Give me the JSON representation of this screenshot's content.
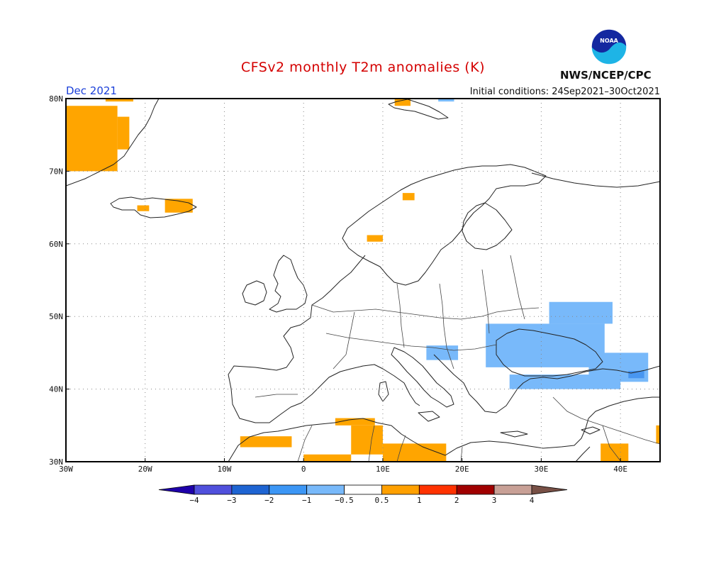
{
  "header": {
    "title": "CFSv2 monthly T2m anomalies (K)",
    "agency": "NWS/NCEP/CPC",
    "logo_text": "NOAA",
    "month": "Dec 2021",
    "initial_conditions": "Initial conditions: 24Sep2021–30Oct2021"
  },
  "map": {
    "lon_range": [
      -30,
      45
    ],
    "lat_range": [
      30,
      80
    ],
    "lon_ticks": [
      {
        "value": -30,
        "label": "30W"
      },
      {
        "value": -20,
        "label": "20W"
      },
      {
        "value": -10,
        "label": "10W"
      },
      {
        "value": 0,
        "label": "0"
      },
      {
        "value": 10,
        "label": "10E"
      },
      {
        "value": 20,
        "label": "20E"
      },
      {
        "value": 30,
        "label": "30E"
      },
      {
        "value": 40,
        "label": "40E"
      }
    ],
    "lat_ticks": [
      {
        "value": 30,
        "label": "30N"
      },
      {
        "value": 40,
        "label": "40N"
      },
      {
        "value": 50,
        "label": "50N"
      },
      {
        "value": 60,
        "label": "60N"
      },
      {
        "value": 70,
        "label": "70N"
      },
      {
        "value": 80,
        "label": "80N"
      }
    ],
    "warm_patches": [
      {
        "name": "greenland-warm",
        "lon": [
          -30,
          -23.5
        ],
        "lat": [
          70,
          79
        ],
        "color": "#ffa500"
      },
      {
        "name": "greenland-coast-warm",
        "lon": [
          -23.5,
          -22
        ],
        "lat": [
          73,
          77.5
        ],
        "color": "#ffa500"
      },
      {
        "name": "greenland-top-warm",
        "lon": [
          -25,
          -21.5
        ],
        "lat": [
          79.6,
          80
        ],
        "color": "#ffa500"
      },
      {
        "name": "iceland-warm-west",
        "lon": [
          -21,
          -19.5
        ],
        "lat": [
          64.5,
          65.3
        ],
        "color": "#ffa500"
      },
      {
        "name": "iceland-warm-east",
        "lon": [
          -17.5,
          -14
        ],
        "lat": [
          64.3,
          66.2
        ],
        "color": "#ffa500"
      },
      {
        "name": "norway-warm-north",
        "lon": [
          12.5,
          14
        ],
        "lat": [
          66,
          67
        ],
        "color": "#ffa500"
      },
      {
        "name": "norway-warm-south",
        "lon": [
          8,
          10
        ],
        "lat": [
          60.3,
          61.2
        ],
        "color": "#ffa500"
      },
      {
        "name": "svalbard-warm",
        "lon": [
          11.5,
          13.5
        ],
        "lat": [
          79,
          80
        ],
        "color": "#ffa500"
      },
      {
        "name": "morocco-warm",
        "lon": [
          -8,
          -1.5
        ],
        "lat": [
          32,
          33.5
        ],
        "color": "#ffa500"
      },
      {
        "name": "algeria-warm-1",
        "lon": [
          4,
          9
        ],
        "lat": [
          35,
          36
        ],
        "color": "#ffa500"
      },
      {
        "name": "algeria-warm-2",
        "lon": [
          6,
          10
        ],
        "lat": [
          31,
          35
        ],
        "color": "#ffa500"
      },
      {
        "name": "tunisia-libya-warm",
        "lon": [
          10,
          18
        ],
        "lat": [
          30,
          32.5
        ],
        "color": "#ffa500"
      },
      {
        "name": "sahara-warm",
        "lon": [
          0,
          6
        ],
        "lat": [
          30,
          31
        ],
        "color": "#ffa500"
      },
      {
        "name": "iraq-warm",
        "lon": [
          37.5,
          41
        ],
        "lat": [
          30,
          32.5
        ],
        "color": "#ffa500"
      },
      {
        "name": "east-edge-warm",
        "lon": [
          44.5,
          45
        ],
        "lat": [
          32.5,
          35
        ],
        "color": "#ffa500"
      }
    ],
    "cold_patches": [
      {
        "name": "balkans-cold",
        "lon": [
          15.5,
          19.5
        ],
        "lat": [
          44,
          46
        ],
        "color": "#78b9fa"
      },
      {
        "name": "ukraine-cold",
        "lon": [
          23,
          38
        ],
        "lat": [
          43,
          49
        ],
        "color": "#78b9fa"
      },
      {
        "name": "russia-cold",
        "lon": [
          31,
          39
        ],
        "lat": [
          49,
          52
        ],
        "color": "#78b9fa"
      },
      {
        "name": "caucasus-cold",
        "lon": [
          36,
          43.5
        ],
        "lat": [
          41,
          45
        ],
        "color": "#78b9fa"
      },
      {
        "name": "turkey-cold",
        "lon": [
          26,
          40
        ],
        "lat": [
          40,
          42
        ],
        "color": "#78b9fa"
      },
      {
        "name": "caucasus-core-cold",
        "lon": [
          41,
          43
        ],
        "lat": [
          41.5,
          42.5
        ],
        "color": "#4896f0"
      },
      {
        "name": "arctic-cold",
        "lon": [
          17,
          19
        ],
        "lat": [
          79.6,
          80
        ],
        "color": "#78b9fa"
      }
    ]
  },
  "colorbar": {
    "colors": [
      "#1e00aa",
      "#5050dc",
      "#1e64d2",
      "#3c96f5",
      "#78b9fa",
      "#ffffff",
      "#ffa000",
      "#ff3200",
      "#a00000",
      "#c8a096",
      "#785046"
    ],
    "labels": [
      "−4",
      "−3",
      "−2",
      "−1",
      "−0.5",
      "0.5",
      "1",
      "2",
      "3",
      "4"
    ]
  }
}
